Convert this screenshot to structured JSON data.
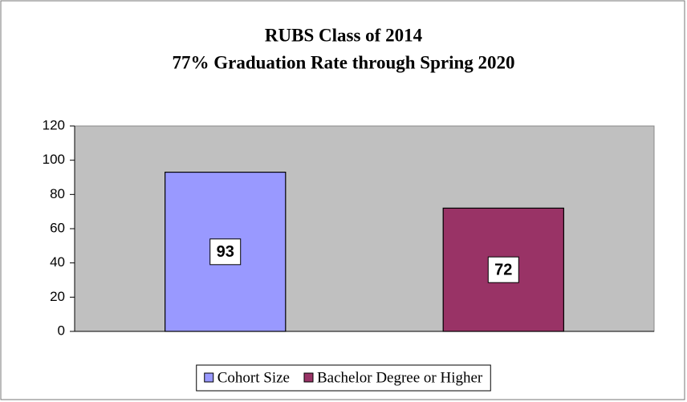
{
  "chart_data": {
    "type": "bar",
    "title": "RUBS Class of 2014",
    "subtitle": "77% Graduation Rate through Spring 2020",
    "categories": [
      null
    ],
    "series": [
      {
        "name": "Cohort Size",
        "color": "#9999ff",
        "values": [
          93
        ]
      },
      {
        "name": "Bachelor Degree or Higher",
        "color": "#993366",
        "values": [
          72
        ]
      }
    ],
    "ylim": [
      0,
      120
    ],
    "yticks": [
      0,
      20,
      40,
      60,
      80,
      100,
      120
    ],
    "grid": false,
    "legend": "bottom"
  }
}
